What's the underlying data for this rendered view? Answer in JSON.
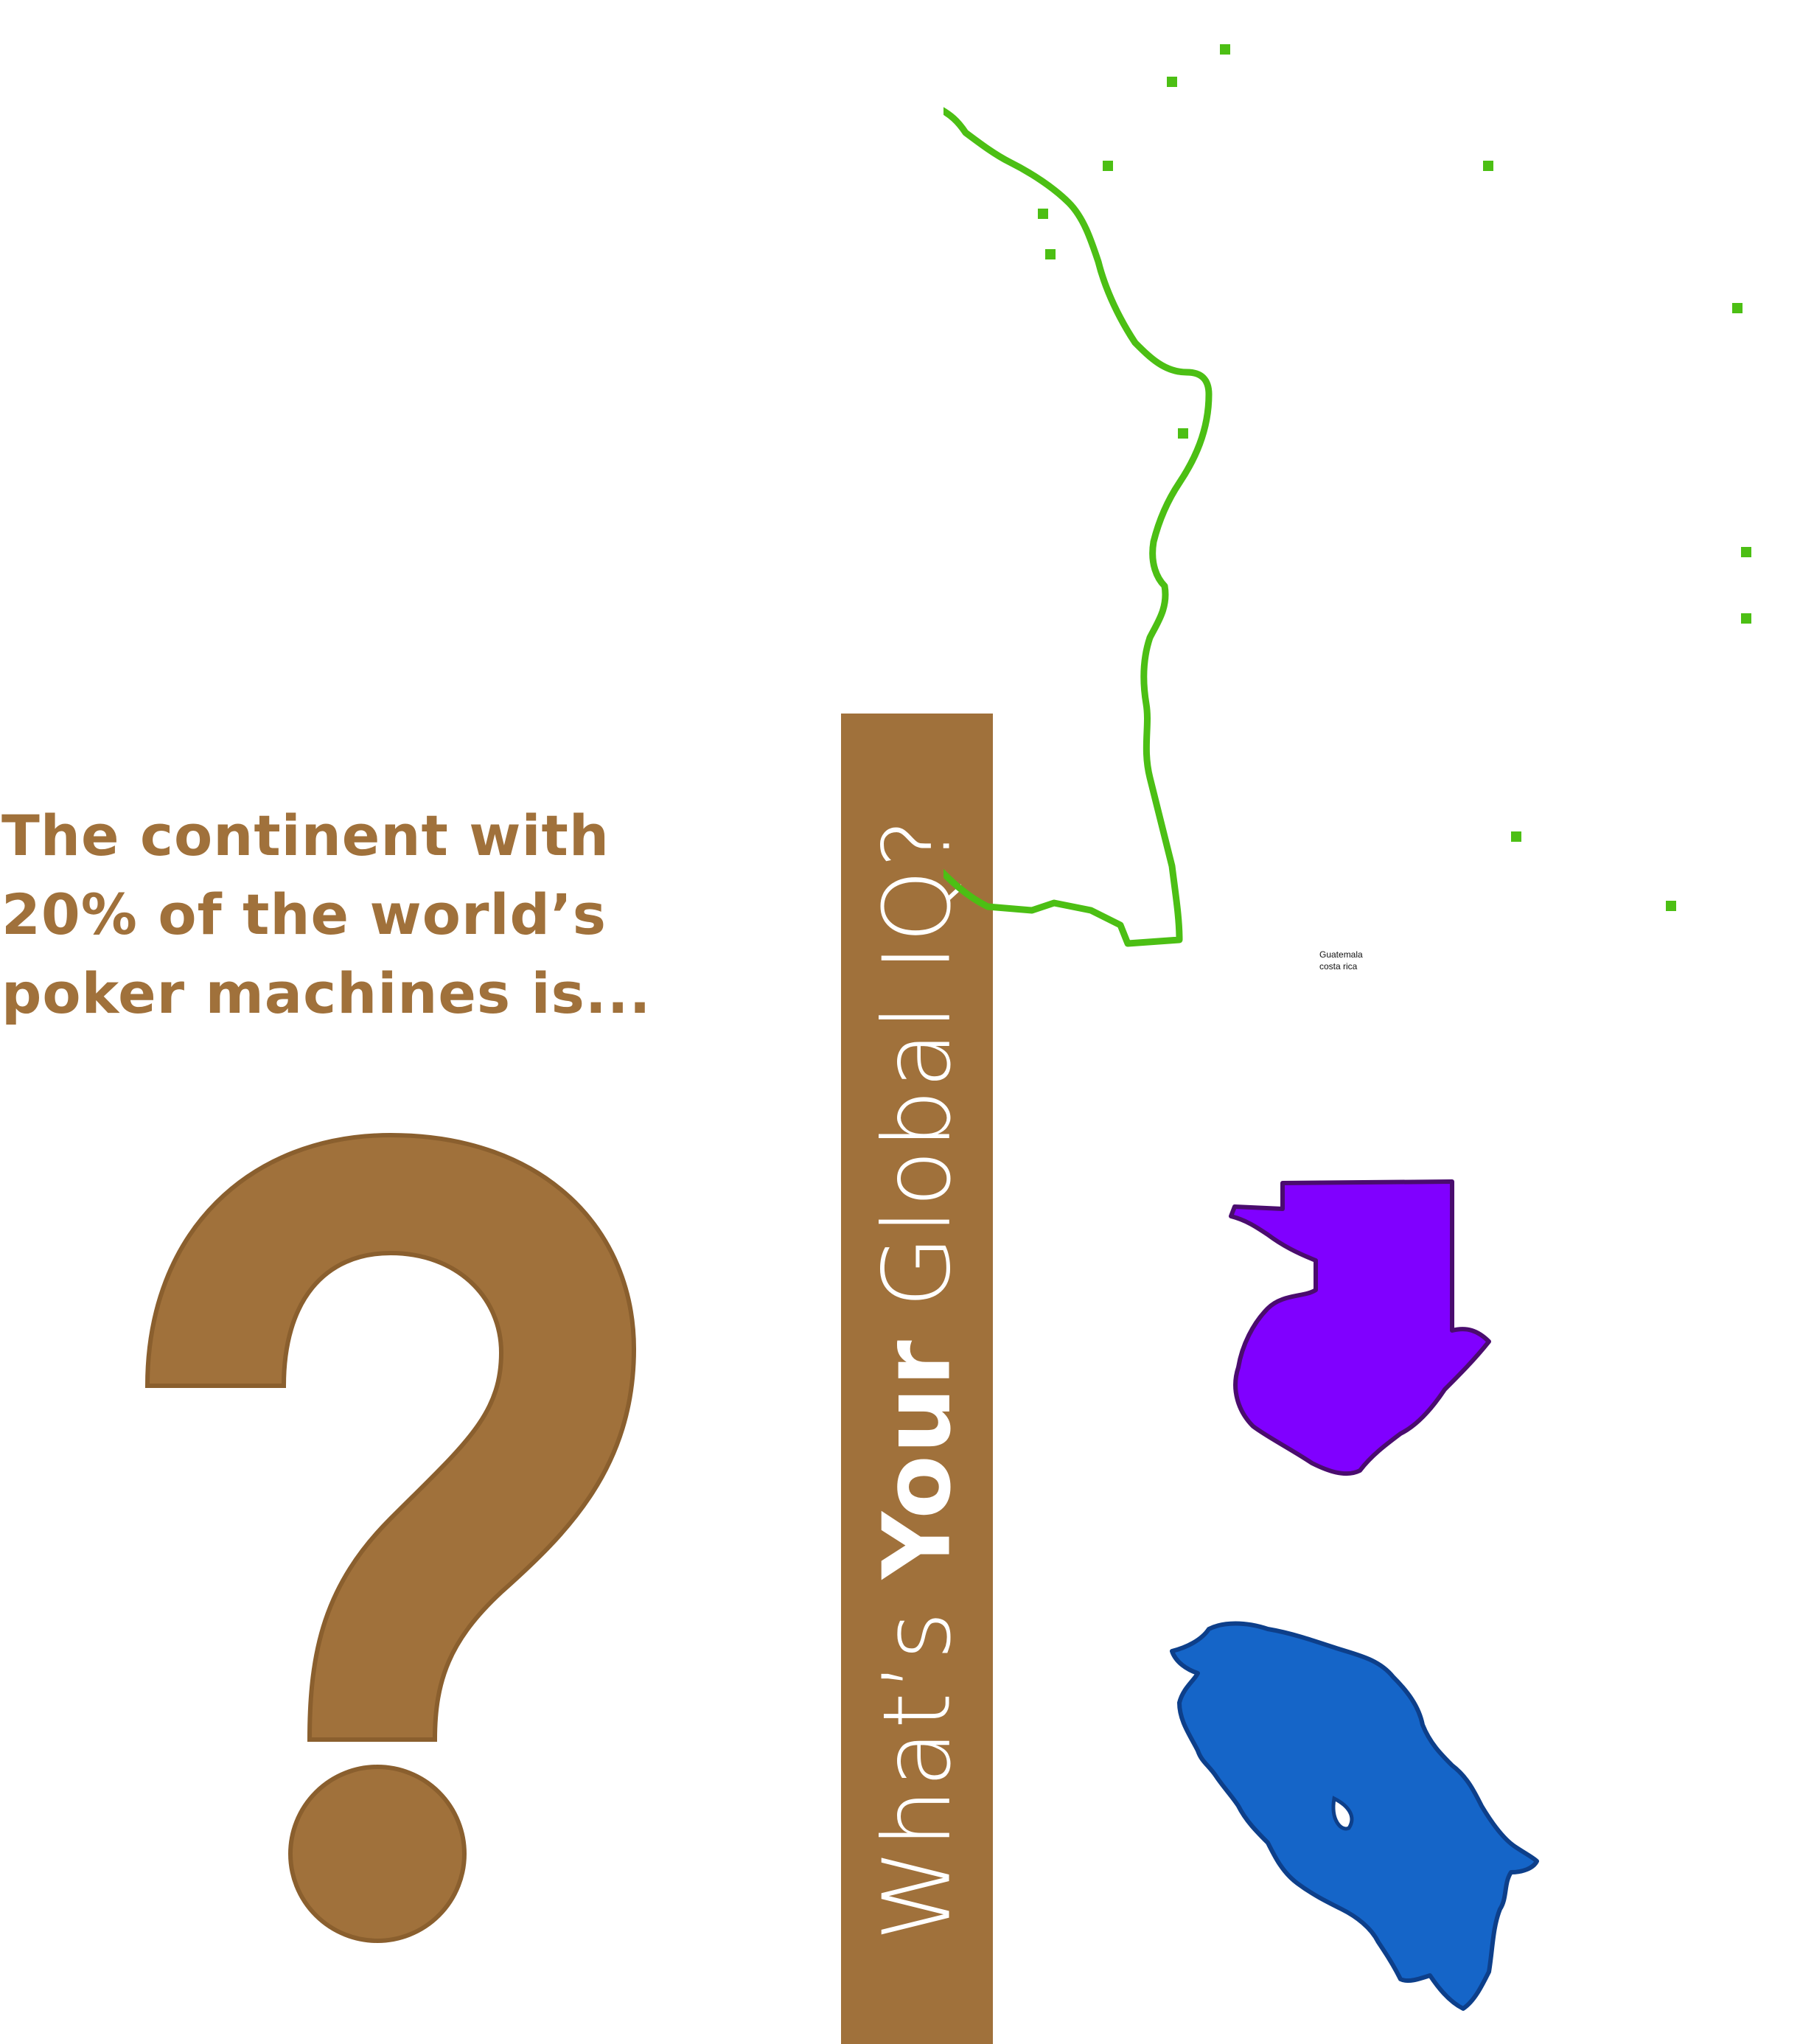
{
  "question": {
    "lines": [
      "The continent with",
      "20% of the world’s",
      "poker machines is..."
    ]
  },
  "title": {
    "prefix": "What’s ",
    "bold": "Your",
    "suffix": " Global IQ?"
  },
  "map_labels": {
    "guatemala": "Guatemala",
    "costa_rica": "costa rica"
  },
  "colors": {
    "brown": "#a0713b",
    "continent_outline": "#4cbf14",
    "guatemala_fill": "#8000ff",
    "costa_rica_fill": "#1565c8"
  },
  "icons": {
    "question_mark": "question-mark-icon",
    "continent": "continent-outline-icon",
    "guatemala": "guatemala-shape-icon",
    "costa_rica": "costa-rica-shape-icon"
  }
}
